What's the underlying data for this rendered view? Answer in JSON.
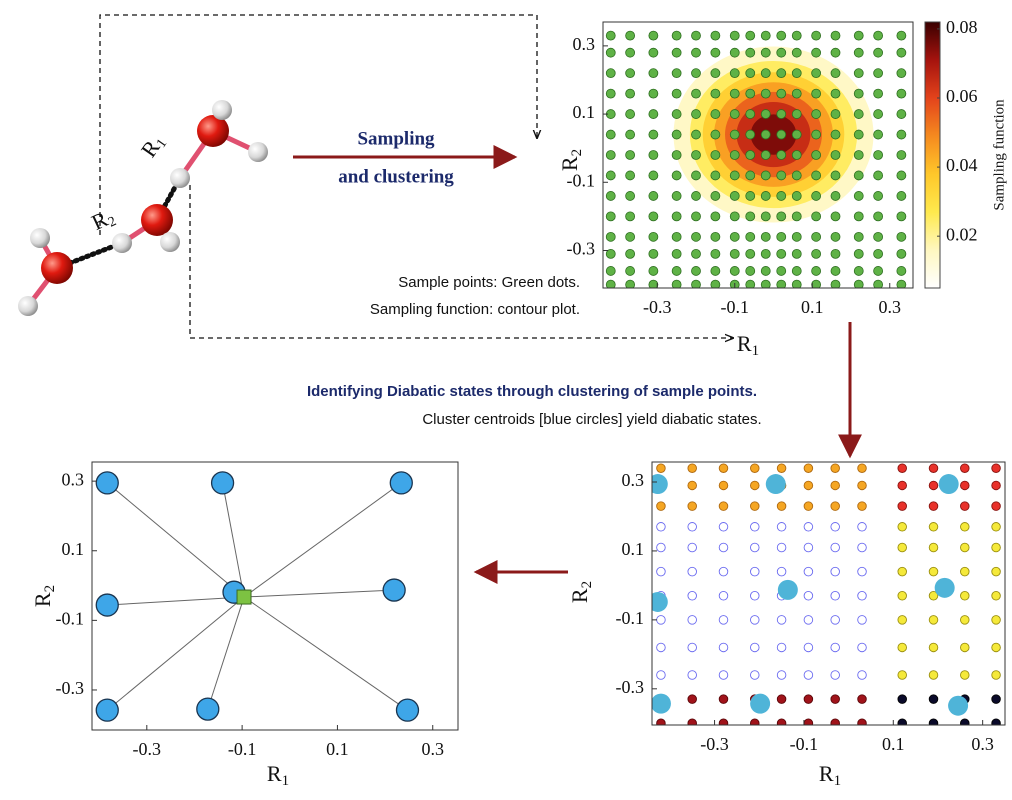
{
  "diagram": {
    "arrow_label": [
      "Sampling",
      "and clustering"
    ],
    "sample_note": [
      "Sample points: Green dots.",
      "Sampling function: contour plot."
    ],
    "molecule_r1": "R",
    "molecule_r1_sub": "1",
    "molecule_r2": "R",
    "molecule_r2_sub": "2",
    "cluster_title": "Identifying Diabatic states through clustering of sample points.",
    "cluster_note": "Cluster centroids [blue circles] yield diabatic states."
  },
  "chart_data": [
    {
      "type": "contour",
      "xlabel": "R",
      "xlabel_sub": "1",
      "ylabel": "R",
      "ylabel_sub": "2",
      "xlim": [
        -0.44,
        0.36
      ],
      "ylim": [
        -0.41,
        0.37
      ],
      "xticks": [
        -0.3,
        -0.1,
        0.1,
        0.3
      ],
      "yticks": [
        -0.3,
        -0.1,
        0.1,
        0.3
      ],
      "peak_x": 0.0,
      "peak_y": 0.04,
      "amplitude": 0.082,
      "sigma": 0.14,
      "levels": [
        0.005,
        0.015,
        0.025,
        0.035,
        0.045,
        0.055,
        0.065,
        0.075
      ],
      "colormap": [
        "#ffffff",
        "#fff7c0",
        "#ffe94d",
        "#ffc72a",
        "#f58a1f",
        "#e3431b",
        "#a5130e",
        "#3a0000"
      ],
      "clim": [
        0.005,
        0.082
      ],
      "cticks": [
        0.02,
        0.04,
        0.06,
        0.08
      ],
      "colorbar_label": "Sampling function",
      "point_color": "#5fb246",
      "grid_x": [
        -0.42,
        -0.37,
        -0.31,
        -0.25,
        -0.2,
        -0.15,
        -0.1,
        -0.06,
        -0.02,
        0.02,
        0.06,
        0.11,
        0.16,
        0.22,
        0.27,
        0.33
      ],
      "grid_y": [
        0.33,
        0.28,
        0.22,
        0.16,
        0.1,
        0.04,
        -0.02,
        -0.08,
        -0.14,
        -0.2,
        -0.26,
        -0.31,
        -0.36,
        -0.4
      ]
    },
    {
      "type": "cluster",
      "xlabel": "R",
      "xlabel_sub": "1",
      "ylabel": "R",
      "ylabel_sub": "2",
      "xlim": [
        -0.44,
        0.35
      ],
      "ylim": [
        -0.405,
        0.358
      ],
      "xticks": [
        -0.3,
        -0.1,
        0.1,
        0.3
      ],
      "yticks": [
        -0.3,
        -0.1,
        0.1,
        0.3
      ],
      "grid_x": [
        -0.42,
        -0.35,
        -0.28,
        -0.21,
        -0.15,
        -0.09,
        -0.03,
        0.03,
        0.12,
        0.19,
        0.26,
        0.33
      ],
      "grid_y": [
        0.34,
        0.29,
        0.23,
        0.17,
        0.11,
        0.04,
        -0.03,
        -0.1,
        -0.18,
        -0.26,
        -0.33,
        -0.4
      ],
      "clusters": [
        {
          "fill": "#f5a623",
          "stroke": "#b06a10"
        },
        {
          "fill": "#e8312a",
          "stroke": "#8a1410"
        },
        {
          "fill": "#f5e93a",
          "stroke": "#9a8f10"
        },
        {
          "fill": "none",
          "stroke": "#6a6af0"
        },
        {
          "fill": "#a0131a",
          "stroke": "#5a0508"
        },
        {
          "fill": "#0a0a2a",
          "stroke": "#000000"
        }
      ],
      "assignment": [
        [
          0,
          0,
          0,
          0,
          0,
          0,
          0,
          0,
          1,
          1,
          1,
          1
        ],
        [
          0,
          0,
          0,
          0,
          0,
          0,
          0,
          0,
          1,
          1,
          1,
          1
        ],
        [
          0,
          0,
          0,
          0,
          0,
          0,
          0,
          0,
          1,
          1,
          1,
          1
        ],
        [
          3,
          3,
          3,
          3,
          3,
          3,
          3,
          3,
          2,
          2,
          2,
          2
        ],
        [
          3,
          3,
          3,
          3,
          3,
          3,
          3,
          3,
          2,
          2,
          2,
          2
        ],
        [
          3,
          3,
          3,
          3,
          3,
          3,
          3,
          3,
          2,
          2,
          2,
          2
        ],
        [
          3,
          3,
          3,
          3,
          3,
          3,
          3,
          3,
          2,
          2,
          2,
          2
        ],
        [
          3,
          3,
          3,
          3,
          3,
          3,
          3,
          3,
          2,
          2,
          2,
          2
        ],
        [
          3,
          3,
          3,
          3,
          3,
          3,
          3,
          3,
          2,
          2,
          2,
          2
        ],
        [
          3,
          3,
          3,
          3,
          3,
          3,
          3,
          3,
          2,
          2,
          2,
          2
        ],
        [
          4,
          4,
          4,
          4,
          4,
          4,
          4,
          4,
          5,
          5,
          5,
          5
        ],
        [
          4,
          4,
          4,
          4,
          4,
          4,
          4,
          4,
          5,
          5,
          5,
          5
        ]
      ],
      "centroid_color": "#4fb4d8",
      "centroids": {
        "x": [
          -0.427,
          -0.163,
          0.224,
          -0.427,
          -0.136,
          0.215,
          -0.42,
          -0.198,
          0.245
        ],
        "y": [
          0.294,
          0.294,
          0.294,
          -0.048,
          -0.013,
          -0.007,
          -0.343,
          -0.343,
          -0.349
        ]
      }
    },
    {
      "type": "star",
      "xlabel": "R",
      "xlabel_sub": "1",
      "ylabel": "R",
      "ylabel_sub": "2",
      "xlim": [
        -0.415,
        0.353
      ],
      "ylim": [
        -0.415,
        0.355
      ],
      "xticks": [
        -0.3,
        -0.1,
        0.1,
        0.3
      ],
      "yticks": [
        -0.3,
        -0.1,
        0.1,
        0.3
      ],
      "centroid_color": "#3ea6e8",
      "reference_color": "#7dc242",
      "centroids": {
        "x": [
          -0.383,
          -0.141,
          0.234,
          -0.383,
          0.219,
          -0.117,
          -0.383,
          -0.172,
          0.247
        ],
        "y": [
          0.295,
          0.295,
          0.295,
          -0.056,
          -0.013,
          -0.019,
          -0.358,
          -0.355,
          -0.358
        ]
      },
      "reference": {
        "x": -0.096,
        "y": -0.033
      }
    }
  ]
}
